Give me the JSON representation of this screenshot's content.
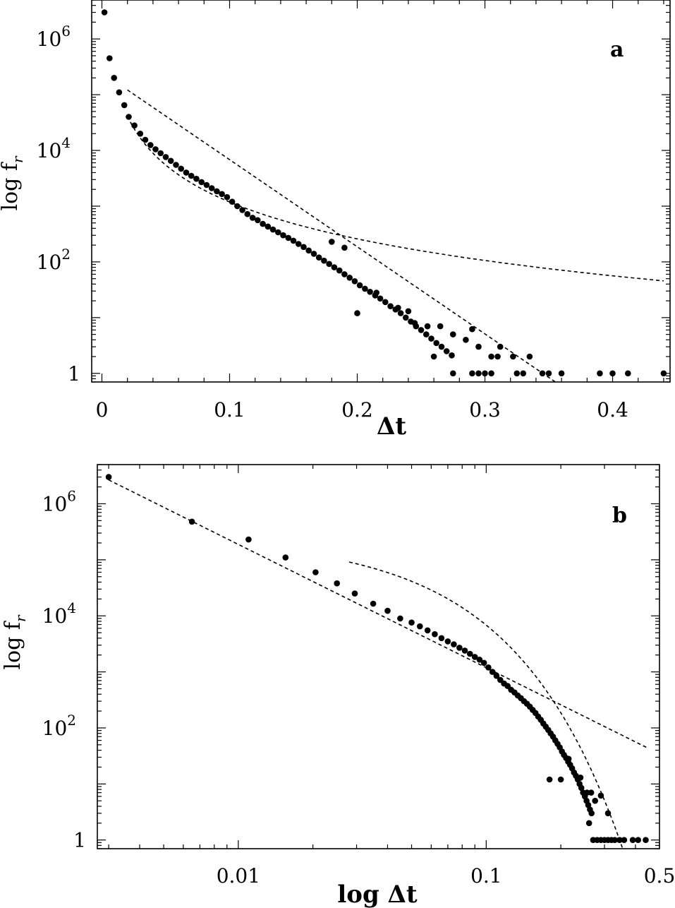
{
  "chart_data": [
    {
      "type": "scatter",
      "panel_label": "a",
      "xlabel": "Δt",
      "ylabel": "log f",
      "ylabel_sub": "r",
      "x_scale": "linear",
      "y_scale": "log",
      "xlim": [
        -0.008,
        0.445
      ],
      "ylim": [
        0.7,
        5000000
      ],
      "x_ticks": [
        {
          "value": 0,
          "label": "0"
        },
        {
          "value": 0.1,
          "label": "0.1"
        },
        {
          "value": 0.2,
          "label": "0.2"
        },
        {
          "value": 0.3,
          "label": "0.3"
        },
        {
          "value": 0.4,
          "label": "0.4"
        }
      ],
      "y_ticks": [
        {
          "value": 1,
          "label": "1",
          "sup": ""
        },
        {
          "value": 100,
          "label": "10",
          "sup": "2"
        },
        {
          "value": 10000,
          "label": "10",
          "sup": "4"
        },
        {
          "value": 1000000,
          "label": "10",
          "sup": "6"
        }
      ],
      "points": [
        [
          0.002,
          3000000
        ],
        [
          0.006,
          450000
        ],
        [
          0.0095,
          200000
        ],
        [
          0.0135,
          110000
        ],
        [
          0.0175,
          65000
        ],
        [
          0.021,
          40000
        ],
        [
          0.0255,
          28000
        ],
        [
          0.03,
          20000
        ],
        [
          0.034,
          15500
        ],
        [
          0.038,
          12500
        ],
        [
          0.042,
          10500
        ],
        [
          0.046,
          8900
        ],
        [
          0.05,
          7600
        ],
        [
          0.054,
          6500
        ],
        [
          0.058,
          5500
        ],
        [
          0.062,
          4700
        ],
        [
          0.066,
          4000
        ],
        [
          0.07,
          3500
        ],
        [
          0.074,
          3100
        ],
        [
          0.078,
          2700
        ],
        [
          0.082,
          2400
        ],
        [
          0.086,
          2100
        ],
        [
          0.09,
          1850
        ],
        [
          0.094,
          1650
        ],
        [
          0.098,
          1450
        ],
        [
          0.102,
          1200
        ],
        [
          0.106,
          1000
        ],
        [
          0.11,
          850
        ],
        [
          0.114,
          720
        ],
        [
          0.118,
          620
        ],
        [
          0.122,
          560
        ],
        [
          0.126,
          480
        ],
        [
          0.13,
          430
        ],
        [
          0.134,
          380
        ],
        [
          0.138,
          340
        ],
        [
          0.142,
          300
        ],
        [
          0.146,
          270
        ],
        [
          0.15,
          240
        ],
        [
          0.154,
          210
        ],
        [
          0.158,
          185
        ],
        [
          0.162,
          160
        ],
        [
          0.166,
          140
        ],
        [
          0.17,
          120
        ],
        [
          0.174,
          105
        ],
        [
          0.178,
          92
        ],
        [
          0.182,
          80
        ],
        [
          0.186,
          70
        ],
        [
          0.19,
          60
        ],
        [
          0.194,
          52
        ],
        [
          0.198,
          45
        ],
        [
          0.202,
          38
        ],
        [
          0.206,
          33
        ],
        [
          0.21,
          29
        ],
        [
          0.214,
          25
        ],
        [
          0.218,
          22
        ],
        [
          0.222,
          19
        ],
        [
          0.226,
          16
        ],
        [
          0.23,
          14
        ],
        [
          0.234,
          12
        ],
        [
          0.238,
          10
        ],
        [
          0.242,
          8.5
        ],
        [
          0.246,
          7
        ],
        [
          0.25,
          6
        ],
        [
          0.254,
          5
        ],
        [
          0.258,
          4.2
        ],
        [
          0.262,
          3.5
        ],
        [
          0.266,
          3
        ],
        [
          0.27,
          2.5
        ],
        [
          0.274,
          2.1
        ],
        [
          0.18,
          230
        ],
        [
          0.19,
          180
        ],
        [
          0.2,
          12
        ],
        [
          0.215,
          28
        ],
        [
          0.232,
          15
        ],
        [
          0.24,
          13
        ],
        [
          0.245,
          8
        ],
        [
          0.255,
          7
        ],
        [
          0.265,
          7
        ],
        [
          0.275,
          5
        ],
        [
          0.285,
          4
        ],
        [
          0.29,
          6.2
        ],
        [
          0.295,
          3
        ],
        [
          0.305,
          2
        ],
        [
          0.31,
          2
        ],
        [
          0.312,
          3
        ],
        [
          0.322,
          2
        ],
        [
          0.335,
          2
        ],
        [
          0.26,
          2
        ],
        [
          0.275,
          1
        ],
        [
          0.29,
          1
        ],
        [
          0.295,
          1
        ],
        [
          0.3,
          1
        ],
        [
          0.305,
          1
        ],
        [
          0.325,
          1
        ],
        [
          0.33,
          1
        ],
        [
          0.345,
          1
        ],
        [
          0.35,
          1
        ],
        [
          0.36,
          1
        ],
        [
          0.39,
          1
        ],
        [
          0.4,
          1
        ],
        [
          0.412,
          1
        ],
        [
          0.44,
          1
        ]
      ],
      "fits": [
        {
          "kind": "power",
          "x_range": [
            0.02,
            0.44
          ],
          "a": 7.5,
          "b": -2.2
        },
        {
          "kind": "exp",
          "x_range": [
            0.02,
            0.36
          ],
          "a": 250000,
          "b": -36
        }
      ]
    },
    {
      "type": "scatter",
      "panel_label": "b",
      "xlabel": "log Δt",
      "ylabel": "log f",
      "ylabel_sub": "r",
      "x_scale": "log",
      "y_scale": "log",
      "xlim": [
        0.0027,
        0.5
      ],
      "ylim": [
        0.7,
        5000000
      ],
      "x_ticks": [
        {
          "value": 0.01,
          "label": "0.01"
        },
        {
          "value": 0.1,
          "label": "0.1"
        },
        {
          "value": 0.5,
          "label": "0.5"
        }
      ],
      "y_ticks": [
        {
          "value": 1,
          "label": "1",
          "sup": ""
        },
        {
          "value": 100,
          "label": "10",
          "sup": "2"
        },
        {
          "value": 10000,
          "label": "10",
          "sup": "4"
        },
        {
          "value": 1000000,
          "label": "10",
          "sup": "6"
        }
      ],
      "points": [
        [
          0.003,
          3000000
        ],
        [
          0.0065,
          480000
        ],
        [
          0.011,
          230000
        ],
        [
          0.0155,
          110000
        ],
        [
          0.0205,
          60000
        ],
        [
          0.025,
          38000
        ],
        [
          0.0295,
          25000
        ],
        [
          0.035,
          16500
        ],
        [
          0.04,
          12300
        ],
        [
          0.045,
          9000
        ],
        [
          0.05,
          7600
        ],
        [
          0.054,
          6500
        ],
        [
          0.058,
          5500
        ],
        [
          0.062,
          4700
        ],
        [
          0.066,
          4000
        ],
        [
          0.07,
          3500
        ],
        [
          0.074,
          3100
        ],
        [
          0.078,
          2700
        ],
        [
          0.082,
          2400
        ],
        [
          0.086,
          2100
        ],
        [
          0.09,
          1850
        ],
        [
          0.094,
          1650
        ],
        [
          0.098,
          1450
        ],
        [
          0.102,
          1200
        ],
        [
          0.106,
          1000
        ],
        [
          0.11,
          850
        ],
        [
          0.114,
          720
        ],
        [
          0.118,
          620
        ],
        [
          0.122,
          560
        ],
        [
          0.126,
          480
        ],
        [
          0.13,
          430
        ],
        [
          0.134,
          380
        ],
        [
          0.138,
          340
        ],
        [
          0.142,
          300
        ],
        [
          0.146,
          270
        ],
        [
          0.15,
          240
        ],
        [
          0.154,
          210
        ],
        [
          0.158,
          185
        ],
        [
          0.162,
          160
        ],
        [
          0.166,
          140
        ],
        [
          0.17,
          120
        ],
        [
          0.174,
          105
        ],
        [
          0.178,
          92
        ],
        [
          0.182,
          80
        ],
        [
          0.186,
          70
        ],
        [
          0.19,
          60
        ],
        [
          0.194,
          52
        ],
        [
          0.198,
          45
        ],
        [
          0.202,
          38
        ],
        [
          0.206,
          33
        ],
        [
          0.21,
          29
        ],
        [
          0.214,
          25
        ],
        [
          0.218,
          22
        ],
        [
          0.222,
          19
        ],
        [
          0.226,
          16
        ],
        [
          0.23,
          14
        ],
        [
          0.234,
          12
        ],
        [
          0.238,
          10
        ],
        [
          0.242,
          8.5
        ],
        [
          0.246,
          7
        ],
        [
          0.25,
          6
        ],
        [
          0.254,
          5
        ],
        [
          0.258,
          4.2
        ],
        [
          0.262,
          3.5
        ],
        [
          0.266,
          3
        ],
        [
          0.18,
          12
        ],
        [
          0.2,
          12
        ],
        [
          0.215,
          28
        ],
        [
          0.24,
          13
        ],
        [
          0.255,
          7
        ],
        [
          0.265,
          7
        ],
        [
          0.275,
          5
        ],
        [
          0.29,
          6.2
        ],
        [
          0.31,
          3
        ],
        [
          0.26,
          2
        ],
        [
          0.27,
          1
        ],
        [
          0.28,
          1
        ],
        [
          0.29,
          1
        ],
        [
          0.3,
          1
        ],
        [
          0.31,
          1
        ],
        [
          0.32,
          1
        ],
        [
          0.33,
          1
        ],
        [
          0.345,
          1
        ],
        [
          0.36,
          1
        ],
        [
          0.39,
          1
        ],
        [
          0.41,
          1
        ],
        [
          0.44,
          1
        ]
      ],
      "fits": [
        {
          "kind": "power",
          "x_range": [
            0.003,
            0.45
          ],
          "a": 7.5,
          "b": -2.2
        },
        {
          "kind": "exp",
          "x_range": [
            0.028,
            0.36
          ],
          "a": 250000,
          "b": -36
        }
      ]
    }
  ]
}
